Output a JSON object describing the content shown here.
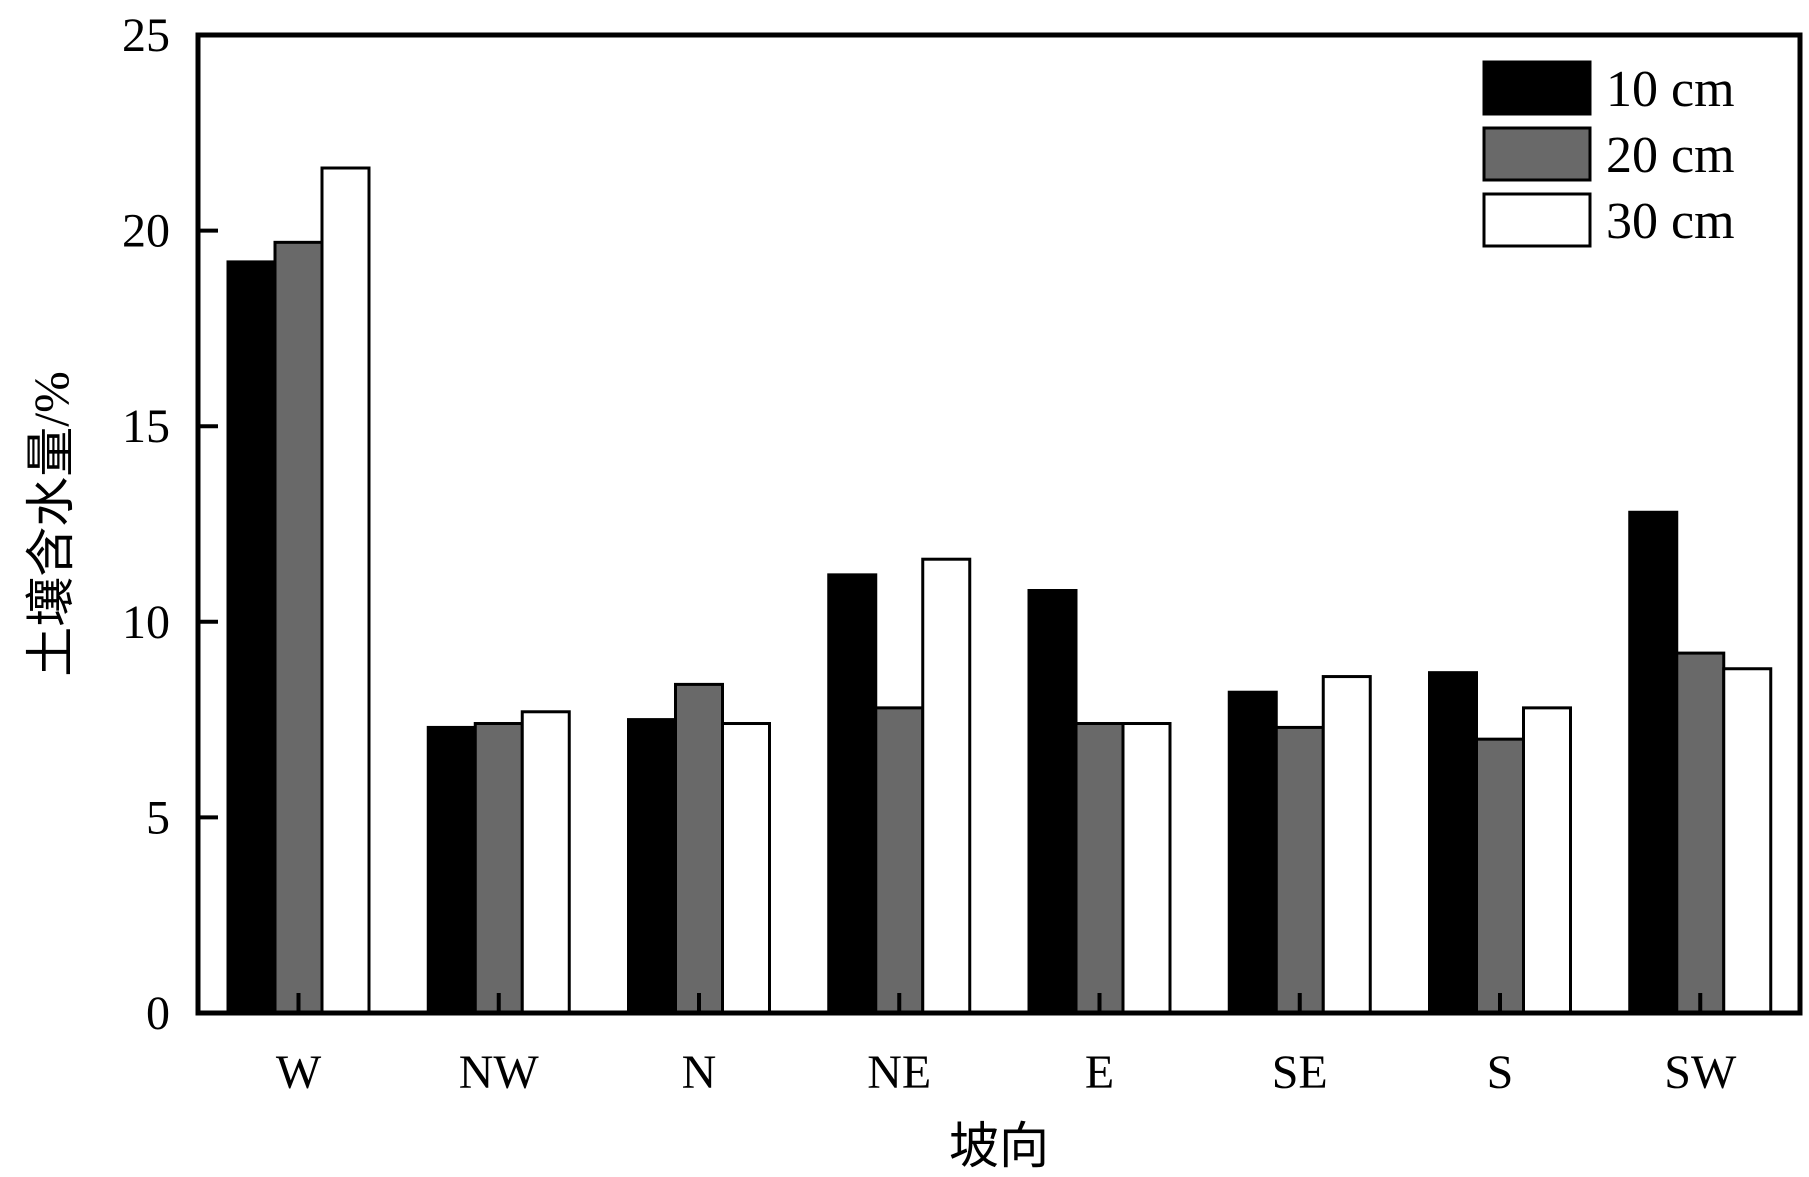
{
  "chart_data": {
    "type": "bar",
    "title": "",
    "xlabel": "坡向",
    "ylabel": "土壤含水量/%",
    "ylim": [
      0,
      25
    ],
    "yticks": [
      0,
      5,
      10,
      15,
      20,
      25
    ],
    "categories": [
      "W",
      "NW",
      "N",
      "NE",
      "E",
      "SE",
      "S",
      "SW"
    ],
    "series": [
      {
        "name": "10 cm",
        "color": "#000000",
        "values": [
          19.2,
          7.3,
          7.5,
          11.2,
          10.8,
          8.2,
          8.7,
          12.8
        ]
      },
      {
        "name": "20 cm",
        "color": "#696969",
        "values": [
          19.7,
          7.4,
          8.4,
          7.8,
          7.4,
          7.3,
          7.0,
          9.2
        ]
      },
      {
        "name": "30 cm",
        "color": "#ffffff",
        "values": [
          21.6,
          7.7,
          7.4,
          11.6,
          7.4,
          8.6,
          7.8,
          8.8
        ]
      }
    ],
    "legend_position": "top-right",
    "grid": false
  }
}
